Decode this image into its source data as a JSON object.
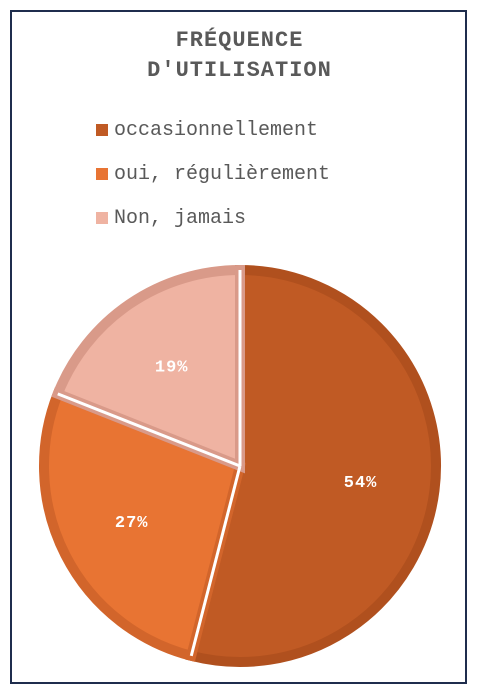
{
  "chart_data": {
    "type": "pie",
    "title_line1": "FRÉQUENCE",
    "title_line2": "D'UTILISATION",
    "legend_position": "top",
    "slices": [
      {
        "label": "occasionnellement",
        "value": 54,
        "value_label": "54%",
        "color": "#c05a24",
        "edge": "#b0501e"
      },
      {
        "label": "oui, régulièrement",
        "value": 27,
        "value_label": "27%",
        "color": "#e87433",
        "edge": "#d2652b"
      },
      {
        "label": "Non, jamais",
        "value": 19,
        "value_label": "19%",
        "color": "#efb3a2",
        "edge": "#d99a89"
      }
    ]
  }
}
